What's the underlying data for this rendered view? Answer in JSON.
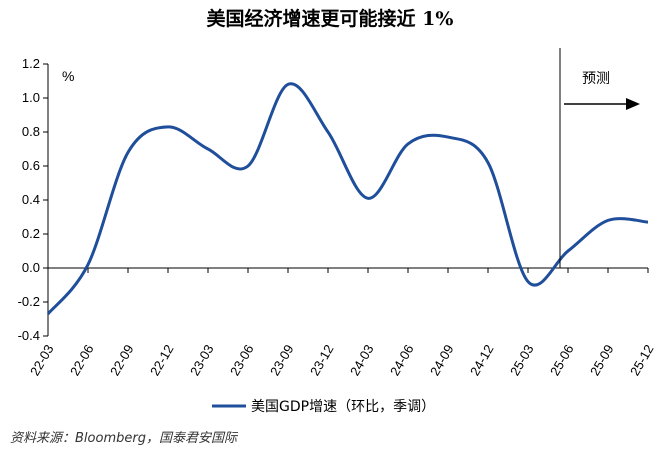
{
  "chart_data": {
    "type": "line",
    "title": "美国经济增速更可能接近 1%",
    "ylabel": "%",
    "ylim": [
      -0.4,
      1.2
    ],
    "yticks": [
      "1.2",
      "1.0",
      "0.8",
      "0.6",
      "0.4",
      "0.2",
      "0.0",
      "-0.2",
      "-0.4"
    ],
    "x_tick_labels": [
      "22-03",
      "22-06",
      "22-09",
      "22-12",
      "23-03",
      "23-06",
      "23-09",
      "23-12",
      "24-03",
      "24-06",
      "24-09",
      "24-12",
      "25-03",
      "25-06",
      "25-09",
      "25-12"
    ],
    "series": [
      {
        "name": "美国GDP增速（环比，季调）",
        "color": "#1f4e9b",
        "x": [
          "22-03",
          "22-06",
          "22-09",
          "22-12",
          "23-03",
          "23-06",
          "23-09",
          "23-12",
          "24-03",
          "24-06",
          "24-09",
          "24-12",
          "25-03",
          "25-06",
          "25-09",
          "25-12"
        ],
        "values": [
          -0.27,
          0.02,
          0.68,
          0.83,
          0.7,
          0.6,
          1.08,
          0.8,
          0.41,
          0.73,
          0.77,
          0.62,
          -0.08,
          0.1,
          0.28,
          0.27
        ]
      }
    ],
    "forecast_start": "25-06",
    "forecast_label": "预测",
    "legend_position": "bottom",
    "grid": false
  },
  "source_note": "资料来源：Bloomberg，国泰君安国际"
}
